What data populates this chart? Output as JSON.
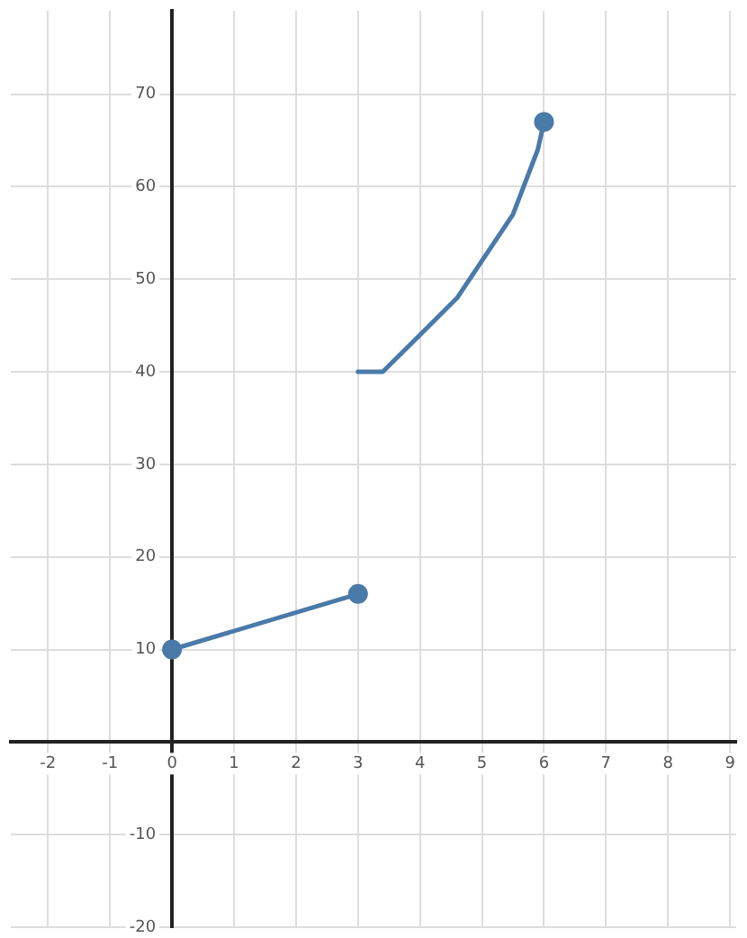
{
  "chart_data": {
    "type": "line",
    "xlim": [
      -2.6,
      9.1
    ],
    "ylim": [
      -20,
      79
    ],
    "xticks": [
      -2,
      -1,
      0,
      1,
      2,
      3,
      4,
      5,
      6,
      7,
      8,
      9
    ],
    "yticks": [
      -20,
      -10,
      10,
      20,
      30,
      40,
      50,
      60,
      70
    ],
    "grid": true,
    "legend": false,
    "marker": "none",
    "line_style": "solid",
    "series": [
      {
        "color": "#4a7aa8",
        "x": [
          0,
          3
        ],
        "values": [
          10,
          16
        ]
      },
      {
        "color": "#4a7aa8",
        "x": [
          3,
          3.4,
          4,
          4.6,
          5,
          5.5,
          5.9,
          6
        ],
        "values": [
          40,
          40,
          44,
          48,
          52,
          57,
          64,
          67
        ]
      },
      {
        "type": "scatter",
        "marker": "circle",
        "color": "#4a7aa8",
        "x": [
          0,
          3,
          6
        ],
        "values": [
          10,
          16,
          67
        ]
      }
    ]
  }
}
